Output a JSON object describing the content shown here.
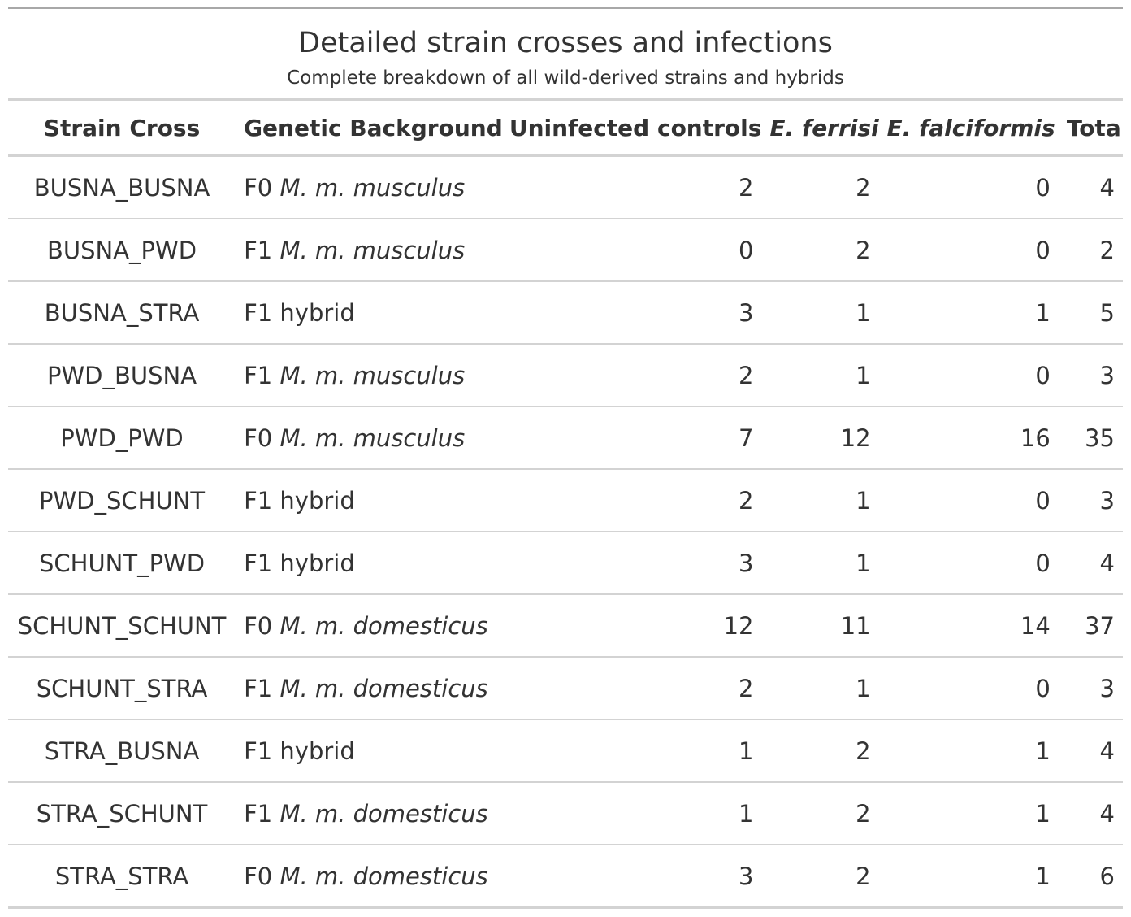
{
  "title": "Detailed strain crosses and infections",
  "subtitle": "Complete breakdown of all wild-derived strains and hybrids",
  "columns": {
    "strain_cross": "Strain Cross",
    "genetic_background": "Genetic Background",
    "uninfected": "Uninfected controls",
    "ferrisi": "E. ferrisi",
    "falciformis": "E. falciformis",
    "total": "Total"
  },
  "rows": [
    {
      "strain": "BUSNA_BUSNA",
      "bg_prefix": "F0",
      "bg_species": "M. m. musculus",
      "uninfected": "2",
      "ferrisi": "2",
      "falciformis": "0",
      "total": "4"
    },
    {
      "strain": "BUSNA_PWD",
      "bg_prefix": "F1",
      "bg_species": "M. m. musculus",
      "uninfected": "0",
      "ferrisi": "2",
      "falciformis": "0",
      "total": "2"
    },
    {
      "strain": "BUSNA_STRA",
      "bg_prefix": "F1 hybrid",
      "bg_species": "",
      "uninfected": "3",
      "ferrisi": "1",
      "falciformis": "1",
      "total": "5"
    },
    {
      "strain": "PWD_BUSNA",
      "bg_prefix": "F1",
      "bg_species": "M. m. musculus",
      "uninfected": "2",
      "ferrisi": "1",
      "falciformis": "0",
      "total": "3"
    },
    {
      "strain": "PWD_PWD",
      "bg_prefix": "F0",
      "bg_species": "M. m. musculus",
      "uninfected": "7",
      "ferrisi": "12",
      "falciformis": "16",
      "total": "35"
    },
    {
      "strain": "PWD_SCHUNT",
      "bg_prefix": "F1 hybrid",
      "bg_species": "",
      "uninfected": "2",
      "ferrisi": "1",
      "falciformis": "0",
      "total": "3"
    },
    {
      "strain": "SCHUNT_PWD",
      "bg_prefix": "F1 hybrid",
      "bg_species": "",
      "uninfected": "3",
      "ferrisi": "1",
      "falciformis": "0",
      "total": "4"
    },
    {
      "strain": "SCHUNT_SCHUNT",
      "bg_prefix": "F0",
      "bg_species": "M. m. domesticus",
      "uninfected": "12",
      "ferrisi": "11",
      "falciformis": "14",
      "total": "37"
    },
    {
      "strain": "SCHUNT_STRA",
      "bg_prefix": "F1",
      "bg_species": "M. m. domesticus",
      "uninfected": "2",
      "ferrisi": "1",
      "falciformis": "0",
      "total": "3"
    },
    {
      "strain": "STRA_BUSNA",
      "bg_prefix": "F1 hybrid",
      "bg_species": "",
      "uninfected": "1",
      "ferrisi": "2",
      "falciformis": "1",
      "total": "4"
    },
    {
      "strain": "STRA_SCHUNT",
      "bg_prefix": "F1",
      "bg_species": "M. m. domesticus",
      "uninfected": "1",
      "ferrisi": "2",
      "falciformis": "1",
      "total": "4"
    },
    {
      "strain": "STRA_STRA",
      "bg_prefix": "F0",
      "bg_species": "M. m. domesticus",
      "uninfected": "3",
      "ferrisi": "2",
      "falciformis": "1",
      "total": "6"
    }
  ]
}
